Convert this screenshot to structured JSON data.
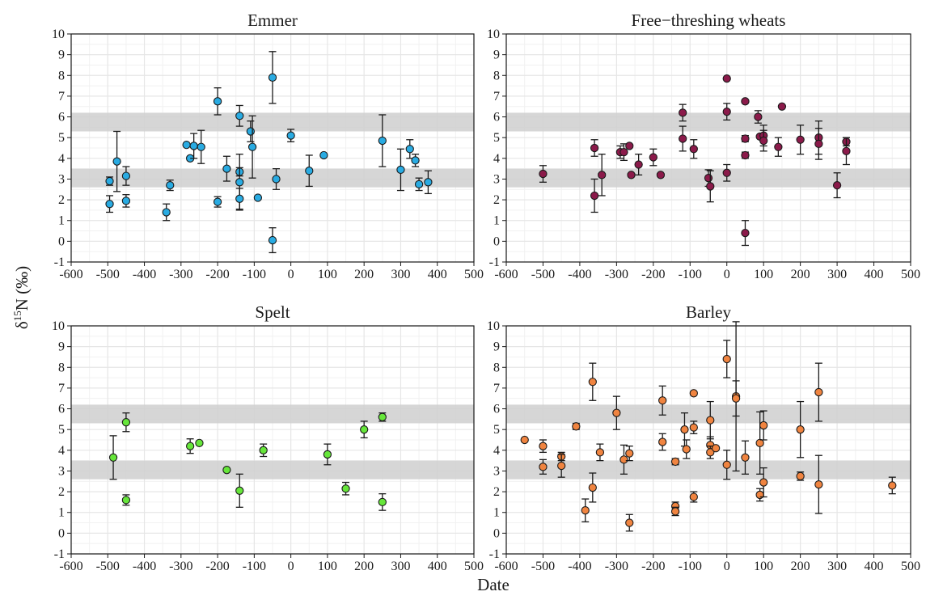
{
  "figure": {
    "y_label_delta": "δ",
    "y_label_sup": "15",
    "y_label_rest": "N (‰)",
    "x_label": "Date"
  },
  "style": {
    "band_color": "#cfcfcf",
    "grid_color": "#e6e6e6",
    "axis_color": "#1a1a1a",
    "point_stroke": "#1a1a1a"
  },
  "chart_data": [
    {
      "type": "scatter",
      "title": "Emmer",
      "color": "#29ABE2",
      "xlim": [
        -600,
        500
      ],
      "ylim": [
        -1,
        10
      ],
      "xticks": [
        -600,
        -500,
        -400,
        -300,
        -200,
        -100,
        0,
        100,
        200,
        300,
        400,
        500
      ],
      "yticks": [
        -1,
        0,
        1,
        2,
        3,
        4,
        5,
        6,
        7,
        8,
        9,
        10
      ],
      "bands": [
        [
          5.3,
          6.2
        ],
        [
          2.6,
          3.5
        ]
      ],
      "points": [
        {
          "x": -495,
          "y": 2.9,
          "err": 0.2
        },
        {
          "x": -495,
          "y": 1.8,
          "err": 0.4
        },
        {
          "x": -475,
          "y": 3.85,
          "err": 1.45
        },
        {
          "x": -450,
          "y": 3.15,
          "err": 0.45
        },
        {
          "x": -450,
          "y": 1.95,
          "err": 0.3
        },
        {
          "x": -340,
          "y": 1.4,
          "err": 0.4
        },
        {
          "x": -330,
          "y": 2.7,
          "err": 0.25
        },
        {
          "x": -285,
          "y": 4.65,
          "err": 0
        },
        {
          "x": -275,
          "y": 4.0,
          "err": 0
        },
        {
          "x": -265,
          "y": 4.6,
          "err": 0.6
        },
        {
          "x": -245,
          "y": 4.55,
          "err": 0.8
        },
        {
          "x": -200,
          "y": 6.75,
          "err": 0.65
        },
        {
          "x": -200,
          "y": 1.9,
          "err": 0.25
        },
        {
          "x": -175,
          "y": 3.5,
          "err": 0.6
        },
        {
          "x": -140,
          "y": 6.05,
          "err": 0.5
        },
        {
          "x": -140,
          "y": 3.35,
          "err": 0.2
        },
        {
          "x": -140,
          "y": 2.85,
          "err": 1.35
        },
        {
          "x": -140,
          "y": 2.05,
          "err": 0.5
        },
        {
          "x": -110,
          "y": 5.3,
          "err": 0.5
        },
        {
          "x": -105,
          "y": 4.55,
          "err": 1.5
        },
        {
          "x": -90,
          "y": 2.1,
          "err": 0
        },
        {
          "x": -50,
          "y": 7.9,
          "err": 1.25
        },
        {
          "x": -50,
          "y": 0.05,
          "err": 0.6
        },
        {
          "x": -40,
          "y": 3.0,
          "err": 0.5
        },
        {
          "x": 0,
          "y": 5.1,
          "err": 0.3
        },
        {
          "x": 50,
          "y": 3.4,
          "err": 0.75
        },
        {
          "x": 90,
          "y": 4.15,
          "err": 0
        },
        {
          "x": 250,
          "y": 4.85,
          "err": 1.25
        },
        {
          "x": 300,
          "y": 3.45,
          "err": 1.0
        },
        {
          "x": 325,
          "y": 4.45,
          "err": 0.45
        },
        {
          "x": 340,
          "y": 3.9,
          "err": 0.3
        },
        {
          "x": 350,
          "y": 2.75,
          "err": 0.3
        },
        {
          "x": 375,
          "y": 2.85,
          "err": 0.55
        }
      ]
    },
    {
      "type": "scatter",
      "title": "Free−threshing wheats",
      "color": "#8B1A4A",
      "xlim": [
        -600,
        500
      ],
      "ylim": [
        -1,
        10
      ],
      "xticks": [
        -600,
        -500,
        -400,
        -300,
        -200,
        -100,
        0,
        100,
        200,
        300,
        400,
        500
      ],
      "yticks": [
        -1,
        0,
        1,
        2,
        3,
        4,
        5,
        6,
        7,
        8,
        9,
        10
      ],
      "bands": [
        [
          5.3,
          6.2
        ],
        [
          2.6,
          3.5
        ]
      ],
      "points": [
        {
          "x": -500,
          "y": 3.25,
          "err": 0.4
        },
        {
          "x": -360,
          "y": 4.5,
          "err": 0.4
        },
        {
          "x": -360,
          "y": 2.2,
          "err": 0.8
        },
        {
          "x": -340,
          "y": 3.2,
          "err": 1.0
        },
        {
          "x": -290,
          "y": 4.3,
          "err": 0.3
        },
        {
          "x": -280,
          "y": 4.3,
          "err": 0.4
        },
        {
          "x": -265,
          "y": 4.6,
          "err": 0
        },
        {
          "x": -260,
          "y": 3.2,
          "err": 0
        },
        {
          "x": -240,
          "y": 3.7,
          "err": 0.5
        },
        {
          "x": -200,
          "y": 4.05,
          "err": 0.4
        },
        {
          "x": -180,
          "y": 3.2,
          "err": 0
        },
        {
          "x": -120,
          "y": 6.2,
          "err": 0.4
        },
        {
          "x": -120,
          "y": 4.95,
          "err": 0.6
        },
        {
          "x": -90,
          "y": 4.45,
          "err": 0.45
        },
        {
          "x": -50,
          "y": 3.05,
          "err": 0.4
        },
        {
          "x": -45,
          "y": 2.65,
          "err": 0.75
        },
        {
          "x": 0,
          "y": 7.85,
          "err": 0
        },
        {
          "x": 0,
          "y": 6.25,
          "err": 0.4
        },
        {
          "x": 0,
          "y": 3.3,
          "err": 0.4
        },
        {
          "x": 50,
          "y": 6.75,
          "err": 0
        },
        {
          "x": 50,
          "y": 4.95,
          "err": 0.15
        },
        {
          "x": 50,
          "y": 4.15,
          "err": 0.15
        },
        {
          "x": 50,
          "y": 0.4,
          "err": 0.6
        },
        {
          "x": 85,
          "y": 6.0,
          "err": 0.3
        },
        {
          "x": 90,
          "y": 5.05,
          "err": 0
        },
        {
          "x": 100,
          "y": 5.1,
          "err": 0.5
        },
        {
          "x": 100,
          "y": 4.85,
          "err": 0.5
        },
        {
          "x": 140,
          "y": 4.55,
          "err": 0.45
        },
        {
          "x": 150,
          "y": 6.5,
          "err": 0
        },
        {
          "x": 200,
          "y": 4.9,
          "err": 0.7
        },
        {
          "x": 250,
          "y": 5.0,
          "err": 0.8
        },
        {
          "x": 250,
          "y": 4.7,
          "err": 0.75
        },
        {
          "x": 300,
          "y": 2.7,
          "err": 0.6
        },
        {
          "x": 325,
          "y": 4.8,
          "err": 0.2
        },
        {
          "x": 325,
          "y": 4.35,
          "err": 0.65
        }
      ]
    },
    {
      "type": "scatter",
      "title": "Spelt",
      "color": "#66E63A",
      "xlim": [
        -600,
        500
      ],
      "ylim": [
        -1,
        10
      ],
      "xticks": [
        -600,
        -500,
        -400,
        -300,
        -200,
        -100,
        0,
        100,
        200,
        300,
        400,
        500
      ],
      "yticks": [
        -1,
        0,
        1,
        2,
        3,
        4,
        5,
        6,
        7,
        8,
        9,
        10
      ],
      "bands": [
        [
          5.3,
          6.2
        ],
        [
          2.6,
          3.5
        ]
      ],
      "points": [
        {
          "x": -485,
          "y": 3.65,
          "err": 1.05
        },
        {
          "x": -450,
          "y": 5.35,
          "err": 0.45
        },
        {
          "x": -450,
          "y": 1.6,
          "err": 0.25
        },
        {
          "x": -275,
          "y": 4.2,
          "err": 0.35
        },
        {
          "x": -250,
          "y": 4.35,
          "err": 0
        },
        {
          "x": -175,
          "y": 3.05,
          "err": 0
        },
        {
          "x": -140,
          "y": 2.05,
          "err": 0.8
        },
        {
          "x": -75,
          "y": 4.0,
          "err": 0.3
        },
        {
          "x": 100,
          "y": 3.8,
          "err": 0.5
        },
        {
          "x": 150,
          "y": 2.15,
          "err": 0.3
        },
        {
          "x": 200,
          "y": 5.0,
          "err": 0.4
        },
        {
          "x": 250,
          "y": 5.6,
          "err": 0.2
        },
        {
          "x": 250,
          "y": 1.5,
          "err": 0.4
        }
      ]
    },
    {
      "type": "scatter",
      "title": "Barley",
      "color": "#F08440",
      "xlim": [
        -600,
        500
      ],
      "ylim": [
        -1,
        10
      ],
      "xticks": [
        -600,
        -500,
        -400,
        -300,
        -200,
        -100,
        0,
        100,
        200,
        300,
        400,
        500
      ],
      "yticks": [
        -1,
        0,
        1,
        2,
        3,
        4,
        5,
        6,
        7,
        8,
        9,
        10
      ],
      "bands": [
        [
          5.3,
          6.2
        ],
        [
          2.6,
          3.5
        ]
      ],
      "points": [
        {
          "x": -550,
          "y": 4.5,
          "err": 0
        },
        {
          "x": -500,
          "y": 4.2,
          "err": 0.3
        },
        {
          "x": -500,
          "y": 3.2,
          "err": 0.35
        },
        {
          "x": -450,
          "y": 3.7,
          "err": 0.2
        },
        {
          "x": -450,
          "y": 3.25,
          "err": 0.55
        },
        {
          "x": -410,
          "y": 5.15,
          "err": 0.15
        },
        {
          "x": -385,
          "y": 1.1,
          "err": 0.55
        },
        {
          "x": -365,
          "y": 7.3,
          "err": 0.9
        },
        {
          "x": -365,
          "y": 2.2,
          "err": 0.7
        },
        {
          "x": -345,
          "y": 3.9,
          "err": 0.4
        },
        {
          "x": -300,
          "y": 5.8,
          "err": 0.8
        },
        {
          "x": -280,
          "y": 3.55,
          "err": 0.7
        },
        {
          "x": -265,
          "y": 3.85,
          "err": 0.35
        },
        {
          "x": -265,
          "y": 0.5,
          "err": 0.4
        },
        {
          "x": -175,
          "y": 6.4,
          "err": 0.7
        },
        {
          "x": -175,
          "y": 4.4,
          "err": 0.4
        },
        {
          "x": -140,
          "y": 3.45,
          "err": 0.15
        },
        {
          "x": -140,
          "y": 1.3,
          "err": 0.2
        },
        {
          "x": -140,
          "y": 1.05,
          "err": 0.2
        },
        {
          "x": -115,
          "y": 5.0,
          "err": 0.8
        },
        {
          "x": -110,
          "y": 4.05,
          "err": 0.45
        },
        {
          "x": -90,
          "y": 6.75,
          "err": 0
        },
        {
          "x": -90,
          "y": 5.1,
          "err": 0.3
        },
        {
          "x": -90,
          "y": 1.75,
          "err": 0.25
        },
        {
          "x": -45,
          "y": 5.45,
          "err": 0.9
        },
        {
          "x": -45,
          "y": 4.25,
          "err": 0.4
        },
        {
          "x": -45,
          "y": 3.9,
          "err": 0.3
        },
        {
          "x": -30,
          "y": 4.1,
          "err": 0
        },
        {
          "x": 0,
          "y": 8.4,
          "err": 0.9
        },
        {
          "x": 0,
          "y": 3.3,
          "err": 0.7
        },
        {
          "x": 25,
          "y": 6.6,
          "err": 3.6
        },
        {
          "x": 25,
          "y": 6.5,
          "err": 0.85
        },
        {
          "x": 50,
          "y": 3.65,
          "err": 0.8
        },
        {
          "x": 90,
          "y": 4.35,
          "err": 1.5
        },
        {
          "x": 90,
          "y": 1.85,
          "err": 0.3
        },
        {
          "x": 100,
          "y": 5.2,
          "err": 0.7
        },
        {
          "x": 100,
          "y": 2.45,
          "err": 0.7
        },
        {
          "x": 200,
          "y": 5.0,
          "err": 1.35
        },
        {
          "x": 200,
          "y": 2.75,
          "err": 0.2
        },
        {
          "x": 250,
          "y": 6.8,
          "err": 1.4
        },
        {
          "x": 250,
          "y": 2.35,
          "err": 1.4
        },
        {
          "x": 450,
          "y": 2.3,
          "err": 0.4
        }
      ]
    }
  ]
}
